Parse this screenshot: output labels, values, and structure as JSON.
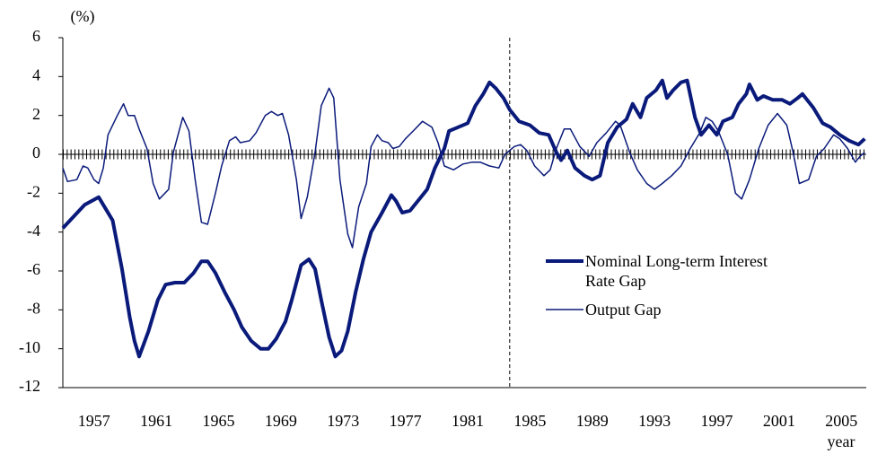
{
  "chart_data": {
    "type": "line",
    "y_unit_label": "(%)",
    "x_label": "year",
    "xlim": [
      1955,
      2006.6
    ],
    "ylim": [
      -12,
      6
    ],
    "xticks": [
      1957,
      1961,
      1965,
      1969,
      1973,
      1977,
      1981,
      1985,
      1989,
      1993,
      1997,
      2001,
      2005
    ],
    "yticks": [
      -12,
      -10,
      -8,
      -6,
      -4,
      -2,
      0,
      2,
      4,
      6
    ],
    "reference_line_x": 1983.7,
    "series": [
      {
        "name": "Nominal Long-term Interest Rate Gap",
        "color": "#0a1a7a",
        "width": 4,
        "x": [
          1955.0,
          1956.4,
          1957.3,
          1958.2,
          1958.8,
          1959.3,
          1959.6,
          1959.9,
          1960.5,
          1961.1,
          1961.6,
          1962.2,
          1962.8,
          1963.4,
          1963.9,
          1964.3,
          1964.8,
          1965.4,
          1966.0,
          1966.5,
          1967.1,
          1967.7,
          1968.2,
          1968.7,
          1969.3,
          1969.7,
          1970.3,
          1970.8,
          1971.2,
          1971.6,
          1972.1,
          1972.5,
          1972.9,
          1973.3,
          1973.8,
          1974.3,
          1974.8,
          1975.5,
          1976.1,
          1976.4,
          1976.8,
          1977.3,
          1977.8,
          1978.4,
          1978.9,
          1979.5,
          1979.8,
          1980.4,
          1981.0,
          1981.5,
          1982.0,
          1982.4,
          1982.8,
          1983.3,
          1983.7,
          1984.3,
          1985.0,
          1985.6,
          1986.2,
          1986.7,
          1987.0,
          1987.4,
          1987.9,
          1988.5,
          1989.0,
          1989.5,
          1990.0,
          1990.6,
          1991.2,
          1991.6,
          1992.1,
          1992.5,
          1993.1,
          1993.5,
          1993.8,
          1994.2,
          1994.7,
          1995.1,
          1995.6,
          1996.0,
          1996.5,
          1997.0,
          1997.4,
          1998.0,
          1998.4,
          1998.9,
          1999.1,
          1999.6,
          2000.0,
          2000.6,
          2001.2,
          2001.7,
          2002.2,
          2002.5,
          2003.2,
          2003.8,
          2004.3,
          2004.9,
          2005.5,
          2006.1,
          2006.5
        ],
        "values": [
          -3.8,
          -2.6,
          -2.2,
          -3.4,
          -5.9,
          -8.4,
          -9.6,
          -10.4,
          -9.1,
          -7.5,
          -6.7,
          -6.6,
          -6.6,
          -6.1,
          -5.5,
          -5.5,
          -6.1,
          -7.1,
          -8.0,
          -8.9,
          -9.6,
          -10.0,
          -10.0,
          -9.5,
          -8.6,
          -7.5,
          -5.7,
          -5.4,
          -5.9,
          -7.5,
          -9.4,
          -10.4,
          -10.1,
          -9.1,
          -7.1,
          -5.4,
          -4.0,
          -3.0,
          -2.1,
          -2.4,
          -3.0,
          -2.9,
          -2.4,
          -1.8,
          -0.7,
          0.3,
          1.2,
          1.4,
          1.6,
          2.5,
          3.1,
          3.7,
          3.4,
          2.9,
          2.3,
          1.7,
          1.5,
          1.1,
          1.0,
          0.1,
          -0.3,
          0.2,
          -0.7,
          -1.1,
          -1.3,
          -1.1,
          0.6,
          1.4,
          1.8,
          2.6,
          1.9,
          2.9,
          3.3,
          3.8,
          2.9,
          3.3,
          3.7,
          3.8,
          1.9,
          1.0,
          1.5,
          1.0,
          1.7,
          1.9,
          2.6,
          3.1,
          3.6,
          2.8,
          3.0,
          2.8,
          2.8,
          2.6,
          2.9,
          3.1,
          2.4,
          1.6,
          1.4,
          1.0,
          0.7,
          0.5,
          0.8
        ]
      },
      {
        "name": "Output Gap",
        "color": "#0a1a7a",
        "width": 1.5,
        "x": [
          1955.0,
          1955.3,
          1955.9,
          1956.3,
          1956.6,
          1957.0,
          1957.3,
          1957.6,
          1957.9,
          1958.5,
          1958.9,
          1959.2,
          1959.6,
          1959.9,
          1960.4,
          1960.8,
          1961.2,
          1961.8,
          1962.1,
          1962.7,
          1963.1,
          1963.5,
          1963.9,
          1964.3,
          1964.8,
          1965.2,
          1965.7,
          1966.1,
          1966.4,
          1967.0,
          1967.4,
          1968.0,
          1968.4,
          1968.8,
          1969.1,
          1969.5,
          1970.0,
          1970.3,
          1970.7,
          1971.2,
          1971.6,
          1972.1,
          1972.4,
          1972.8,
          1973.3,
          1973.6,
          1974.0,
          1974.5,
          1974.8,
          1975.2,
          1975.5,
          1975.9,
          1976.2,
          1976.6,
          1977.0,
          1977.5,
          1978.1,
          1978.7,
          1979.1,
          1979.5,
          1980.1,
          1980.7,
          1981.3,
          1981.8,
          1982.4,
          1983.0,
          1983.4,
          1984.0,
          1984.4,
          1984.8,
          1985.3,
          1985.9,
          1986.3,
          1986.7,
          1987.2,
          1987.6,
          1988.2,
          1988.8,
          1989.3,
          1989.9,
          1990.5,
          1990.8,
          1991.4,
          1991.9,
          1992.5,
          1993.0,
          1993.5,
          1994.1,
          1994.7,
          1995.3,
          1995.9,
          1996.3,
          1996.7,
          1997.1,
          1997.7,
          1998.2,
          1998.6,
          1999.1,
          1999.7,
          2000.3,
          2000.9,
          2001.5,
          2001.9,
          2002.3,
          2002.9,
          2003.4,
          2003.9,
          2004.5,
          2004.9,
          2005.4,
          2005.9,
          2006.2,
          2006.5
        ],
        "values": [
          -0.7,
          -1.4,
          -1.3,
          -0.6,
          -0.7,
          -1.3,
          -1.5,
          -0.7,
          1.0,
          2.0,
          2.6,
          2.0,
          2.0,
          1.3,
          0.3,
          -1.5,
          -2.3,
          -1.8,
          0.1,
          1.9,
          1.2,
          -1.3,
          -3.5,
          -3.6,
          -2.0,
          -0.6,
          0.7,
          0.9,
          0.6,
          0.7,
          1.1,
          2.0,
          2.2,
          2.0,
          2.1,
          1.0,
          -1.3,
          -3.3,
          -2.2,
          0.1,
          2.5,
          3.4,
          2.9,
          -1.3,
          -4.1,
          -4.8,
          -2.7,
          -1.5,
          0.4,
          1.0,
          0.7,
          0.6,
          0.3,
          0.4,
          0.8,
          1.2,
          1.7,
          1.4,
          0.6,
          -0.6,
          -0.8,
          -0.5,
          -0.4,
          -0.4,
          -0.6,
          -0.7,
          0.0,
          0.4,
          0.5,
          0.2,
          -0.6,
          -1.1,
          -0.8,
          0.3,
          1.3,
          1.3,
          0.4,
          -0.1,
          0.6,
          1.1,
          1.7,
          1.5,
          0.1,
          -0.8,
          -1.5,
          -1.8,
          -1.5,
          -1.1,
          -0.6,
          0.3,
          1.1,
          1.9,
          1.7,
          1.2,
          0.0,
          -2.0,
          -2.3,
          -1.3,
          0.3,
          1.5,
          2.1,
          1.5,
          0.1,
          -1.5,
          -1.3,
          -0.1,
          0.3,
          1.0,
          0.8,
          0.3,
          -0.4,
          -0.1,
          0.1
        ]
      }
    ]
  }
}
